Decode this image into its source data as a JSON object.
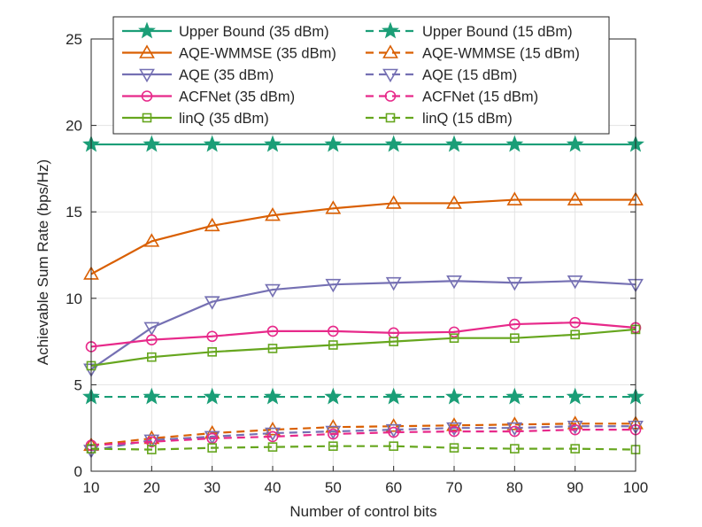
{
  "chart_data": {
    "type": "line",
    "title": "",
    "xlabel": "Number of control bits",
    "ylabel": "Achievable Sum Rate (bps/Hz)",
    "x": [
      10,
      20,
      30,
      40,
      50,
      60,
      70,
      80,
      90,
      100
    ],
    "xlim": [
      10,
      100
    ],
    "ylim": [
      0,
      25
    ],
    "xticks": [
      10,
      20,
      30,
      40,
      50,
      60,
      70,
      80,
      90,
      100
    ],
    "yticks": [
      0,
      5,
      10,
      15,
      20,
      25
    ],
    "grid": true,
    "legend_position": "top",
    "series": [
      {
        "name": "Upper Bound (35 dBm)",
        "color": "#1b9e77",
        "marker": "star",
        "dashed": false,
        "values": [
          18.9,
          18.9,
          18.9,
          18.9,
          18.9,
          18.9,
          18.9,
          18.9,
          18.9,
          18.9
        ]
      },
      {
        "name": "Upper Bound (15 dBm)",
        "color": "#1b9e77",
        "marker": "star",
        "dashed": true,
        "values": [
          4.3,
          4.3,
          4.3,
          4.3,
          4.3,
          4.3,
          4.3,
          4.3,
          4.3,
          4.3
        ]
      },
      {
        "name": "AQE-WMMSE (35 dBm)",
        "color": "#d95f02",
        "marker": "triangle-up",
        "dashed": false,
        "values": [
          11.4,
          13.3,
          14.2,
          14.8,
          15.2,
          15.5,
          15.5,
          15.7,
          15.7,
          15.7
        ]
      },
      {
        "name": "AQE-WMMSE (15 dBm)",
        "color": "#d95f02",
        "marker": "triangle-up",
        "dashed": true,
        "values": [
          1.5,
          1.9,
          2.2,
          2.4,
          2.55,
          2.6,
          2.65,
          2.7,
          2.75,
          2.75
        ]
      },
      {
        "name": "AQE (35 dBm)",
        "color": "#7570b3",
        "marker": "triangle-down",
        "dashed": false,
        "values": [
          5.9,
          8.3,
          9.8,
          10.5,
          10.8,
          10.9,
          11.0,
          10.9,
          11.0,
          10.8
        ]
      },
      {
        "name": "AQE (15 dBm)",
        "color": "#7570b3",
        "marker": "triangle-down",
        "dashed": true,
        "values": [
          1.2,
          1.8,
          2.0,
          2.2,
          2.3,
          2.4,
          2.5,
          2.5,
          2.6,
          2.6
        ]
      },
      {
        "name": "ACFNet (35 dBm)",
        "color": "#e7298a",
        "marker": "circle",
        "dashed": false,
        "values": [
          7.2,
          7.6,
          7.8,
          8.1,
          8.1,
          8.0,
          8.05,
          8.5,
          8.6,
          8.3
        ]
      },
      {
        "name": "ACFNet (15 dBm)",
        "color": "#e7298a",
        "marker": "circle",
        "dashed": true,
        "values": [
          1.5,
          1.7,
          1.9,
          2.0,
          2.15,
          2.25,
          2.3,
          2.3,
          2.4,
          2.4
        ]
      },
      {
        "name": "linQ (35 dBm)",
        "color": "#66a61e",
        "marker": "square",
        "dashed": false,
        "values": [
          6.1,
          6.6,
          6.9,
          7.1,
          7.3,
          7.5,
          7.7,
          7.7,
          7.9,
          8.2
        ]
      },
      {
        "name": "linQ (15 dBm)",
        "color": "#66a61e",
        "marker": "square",
        "dashed": true,
        "values": [
          1.3,
          1.25,
          1.35,
          1.4,
          1.45,
          1.45,
          1.35,
          1.3,
          1.3,
          1.25
        ]
      }
    ],
    "legend_order": [
      "Upper Bound (35 dBm)",
      "Upper Bound (15 dBm)",
      "AQE-WMMSE (35 dBm)",
      "AQE-WMMSE (15 dBm)",
      "AQE (35 dBm)",
      "AQE (15 dBm)",
      "ACFNet (35 dBm)",
      "ACFNet (15 dBm)",
      "linQ (35 dBm)",
      "linQ (15 dBm)"
    ]
  }
}
